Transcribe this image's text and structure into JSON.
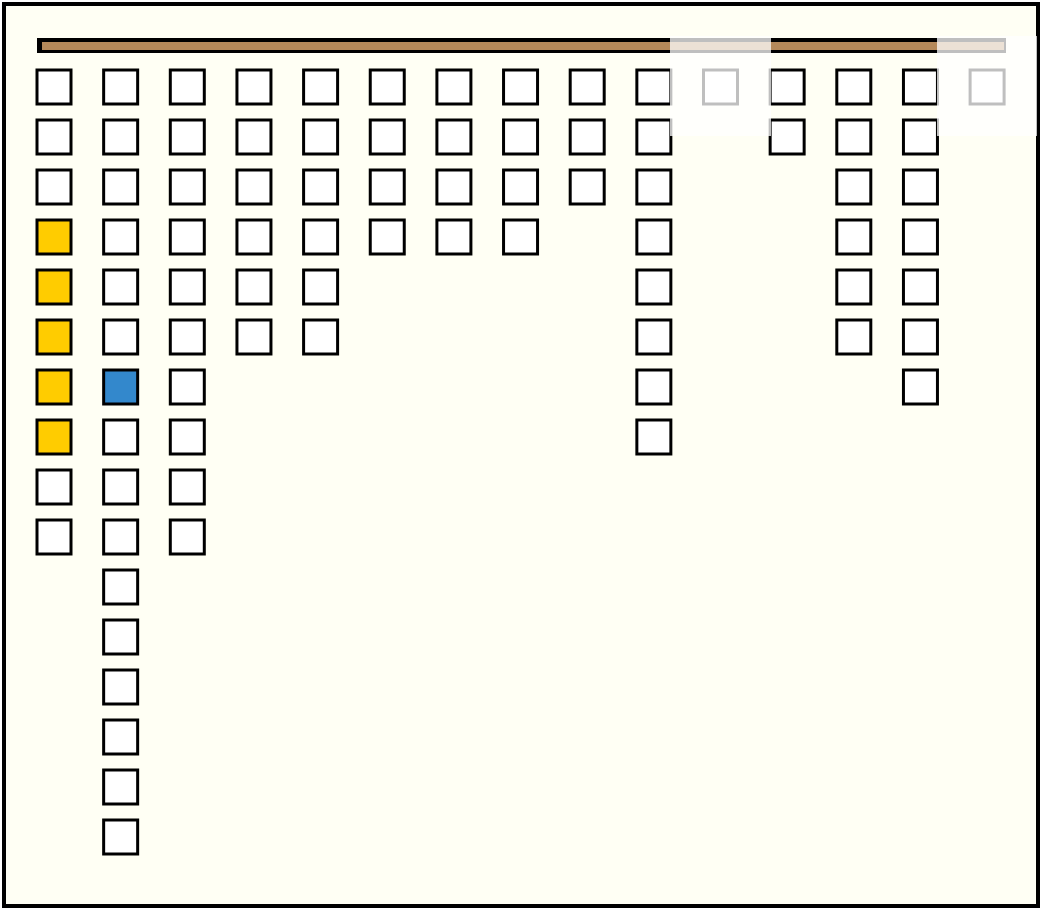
{
  "board": {
    "columns": [
      [
        "empty",
        "empty",
        "empty",
        "yellow",
        "yellow",
        "yellow",
        "yellow",
        "yellow",
        "empty",
        "empty"
      ],
      [
        "empty",
        "empty",
        "empty",
        "empty",
        "empty",
        "empty",
        "blue",
        "empty",
        "empty",
        "empty",
        "empty",
        "empty",
        "empty",
        "empty",
        "empty",
        "empty"
      ],
      [
        "empty",
        "empty",
        "empty",
        "empty",
        "empty",
        "empty",
        "empty",
        "empty",
        "empty",
        "empty"
      ],
      [
        "empty",
        "empty",
        "empty",
        "empty",
        "empty",
        "empty"
      ],
      [
        "empty",
        "empty",
        "empty",
        "empty",
        "empty",
        "empty"
      ],
      [
        "empty",
        "empty",
        "empty",
        "empty"
      ],
      [
        "empty",
        "empty",
        "empty",
        "empty"
      ],
      [
        "empty",
        "empty",
        "empty",
        "empty"
      ],
      [
        "empty",
        "empty",
        "empty"
      ],
      [
        "empty",
        "empty",
        "empty",
        "empty",
        "empty",
        "empty",
        "empty",
        "empty"
      ],
      [
        "empty"
      ],
      [
        "empty",
        "empty"
      ],
      [
        "empty",
        "empty",
        "empty",
        "empty",
        "empty",
        "empty"
      ],
      [
        "empty",
        "empty",
        "empty",
        "empty",
        "empty",
        "empty",
        "empty"
      ],
      [
        "empty"
      ]
    ],
    "colors": {
      "empty": "#ffffff",
      "yellow": "#ffcc00",
      "blue": "#3388cc"
    }
  }
}
